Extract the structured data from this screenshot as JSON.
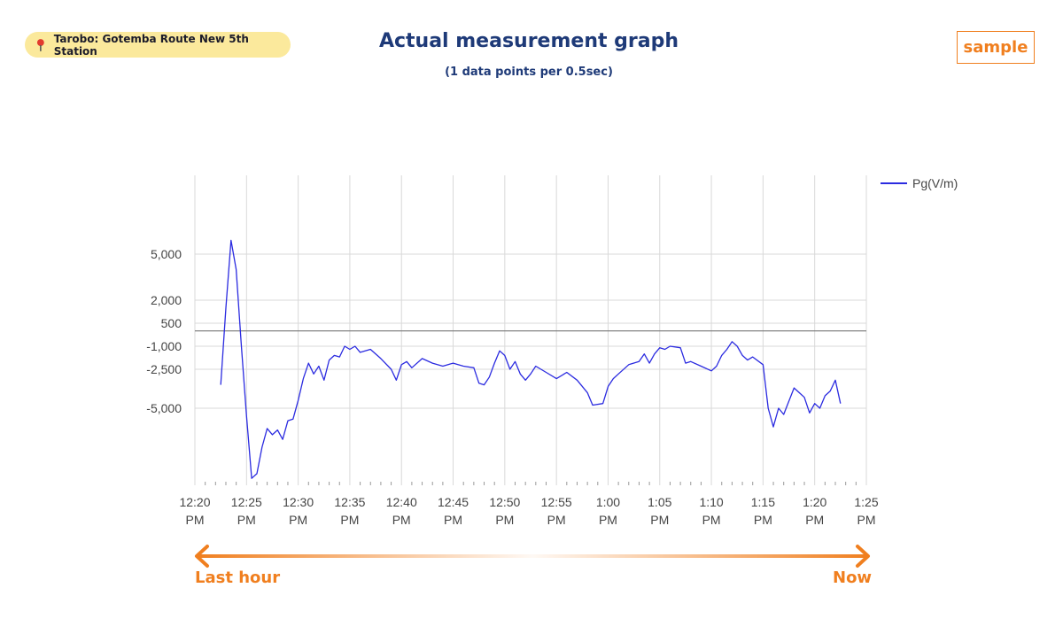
{
  "header": {
    "location": "Tarobo: Gotemba Route New 5th Station",
    "title": "Actual measurement graph",
    "subtitle": "(1 data points per 0.5sec)",
    "badge": "sample"
  },
  "range": {
    "start_label": "Last hour",
    "end_label": "Now"
  },
  "colors": {
    "accent": "#f07f1f",
    "title": "#1e3a78",
    "series": "#2b2be0",
    "location_bg": "#fbe99c"
  },
  "chart_data": {
    "type": "line",
    "title": "",
    "xlabel": "",
    "ylabel": "",
    "x_unit": "time (PM)",
    "xlim": [
      "12:20",
      "1:25"
    ],
    "x_ticks": [
      {
        "line1": "12:20",
        "line2": "PM"
      },
      {
        "line1": "12:25",
        "line2": "PM"
      },
      {
        "line1": "12:30",
        "line2": "PM"
      },
      {
        "line1": "12:35",
        "line2": "PM"
      },
      {
        "line1": "12:40",
        "line2": "PM"
      },
      {
        "line1": "12:45",
        "line2": "PM"
      },
      {
        "line1": "12:50",
        "line2": "PM"
      },
      {
        "line1": "12:55",
        "line2": "PM"
      },
      {
        "line1": "1:00",
        "line2": "PM"
      },
      {
        "line1": "1:05",
        "line2": "PM"
      },
      {
        "line1": "1:10",
        "line2": "PM"
      },
      {
        "line1": "1:15",
        "line2": "PM"
      },
      {
        "line1": "1:20",
        "line2": "PM"
      },
      {
        "line1": "1:25",
        "line2": "PM"
      }
    ],
    "y_ticks": [
      {
        "label": "5,000",
        "value": 5000
      },
      {
        "label": "2,000",
        "value": 2000
      },
      {
        "label": "500",
        "value": 500
      },
      {
        "label": "-1,000",
        "value": -1000
      },
      {
        "label": "-2,500",
        "value": -2500
      },
      {
        "label": "-5,000",
        "value": -5000
      }
    ],
    "y_scale": "nonlinear (ticks unevenly spaced)",
    "reference_line": 0,
    "grid": true,
    "legend": "top-right",
    "series": [
      {
        "name": "Pg(V/m)",
        "points": [
          [
            "12:22:30",
            -3500
          ],
          [
            "12:23:00",
            1500
          ],
          [
            "12:23:30",
            5900
          ],
          [
            "12:24:00",
            4000
          ],
          [
            "12:24:30",
            -1000
          ],
          [
            "12:25:00",
            -5500
          ],
          [
            "12:25:30",
            -9500
          ],
          [
            "12:26:00",
            -9200
          ],
          [
            "12:26:30",
            -7500
          ],
          [
            "12:27:00",
            -6300
          ],
          [
            "12:27:30",
            -6700
          ],
          [
            "12:28:00",
            -6400
          ],
          [
            "12:28:30",
            -7000
          ],
          [
            "12:29:00",
            -5800
          ],
          [
            "12:29:30",
            -5700
          ],
          [
            "12:30:00",
            -4500
          ],
          [
            "12:30:30",
            -3100
          ],
          [
            "12:31:00",
            -2100
          ],
          [
            "12:31:30",
            -2800
          ],
          [
            "12:32:00",
            -2300
          ],
          [
            "12:32:30",
            -3200
          ],
          [
            "12:33:00",
            -1900
          ],
          [
            "12:33:30",
            -1600
          ],
          [
            "12:34:00",
            -1700
          ],
          [
            "12:34:30",
            -1000
          ],
          [
            "12:35:00",
            -1200
          ],
          [
            "12:35:30",
            -1000
          ],
          [
            "12:36:00",
            -1400
          ],
          [
            "12:37:00",
            -1200
          ],
          [
            "12:38:00",
            -1800
          ],
          [
            "12:39:00",
            -2500
          ],
          [
            "12:39:30",
            -3200
          ],
          [
            "12:40:00",
            -2200
          ],
          [
            "12:40:30",
            -2000
          ],
          [
            "12:41:00",
            -2400
          ],
          [
            "12:42:00",
            -1800
          ],
          [
            "12:43:00",
            -2100
          ],
          [
            "12:44:00",
            -2300
          ],
          [
            "12:45:00",
            -2100
          ],
          [
            "12:46:00",
            -2300
          ],
          [
            "12:47:00",
            -2400
          ],
          [
            "12:47:30",
            -3400
          ],
          [
            "12:48:00",
            -3500
          ],
          [
            "12:48:30",
            -3000
          ],
          [
            "12:49:00",
            -2100
          ],
          [
            "12:49:30",
            -1300
          ],
          [
            "12:50:00",
            -1600
          ],
          [
            "12:50:30",
            -2500
          ],
          [
            "12:51:00",
            -2000
          ],
          [
            "12:51:30",
            -2800
          ],
          [
            "12:52:00",
            -3200
          ],
          [
            "12:52:30",
            -2800
          ],
          [
            "12:53:00",
            -2300
          ],
          [
            "12:54:00",
            -2700
          ],
          [
            "12:55:00",
            -3100
          ],
          [
            "12:56:00",
            -2700
          ],
          [
            "12:57:00",
            -3200
          ],
          [
            "12:58:00",
            -4000
          ],
          [
            "12:58:30",
            -4800
          ],
          [
            "12:59:30",
            -4700
          ],
          [
            "13:00:00",
            -3600
          ],
          [
            "13:00:30",
            -3100
          ],
          [
            "13:01:00",
            -2800
          ],
          [
            "13:02:00",
            -2200
          ],
          [
            "13:03:00",
            -2000
          ],
          [
            "13:03:30",
            -1500
          ],
          [
            "13:04:00",
            -2100
          ],
          [
            "13:04:30",
            -1500
          ],
          [
            "13:05:00",
            -1100
          ],
          [
            "13:05:30",
            -1200
          ],
          [
            "13:06:00",
            -1000
          ],
          [
            "13:07:00",
            -1100
          ],
          [
            "13:07:30",
            -2100
          ],
          [
            "13:08:00",
            -2000
          ],
          [
            "13:09:00",
            -2300
          ],
          [
            "13:10:00",
            -2600
          ],
          [
            "13:10:30",
            -2300
          ],
          [
            "13:11:00",
            -1600
          ],
          [
            "13:11:30",
            -1200
          ],
          [
            "13:12:00",
            -700
          ],
          [
            "13:12:30",
            -1000
          ],
          [
            "13:13:00",
            -1600
          ],
          [
            "13:13:30",
            -1900
          ],
          [
            "13:14:00",
            -1700
          ],
          [
            "13:15:00",
            -2200
          ],
          [
            "13:15:30",
            -5000
          ],
          [
            "13:16:00",
            -6200
          ],
          [
            "13:16:30",
            -5000
          ],
          [
            "13:17:00",
            -5400
          ],
          [
            "13:18:00",
            -3700
          ],
          [
            "13:18:30",
            -4000
          ],
          [
            "13:19:00",
            -4300
          ],
          [
            "13:19:30",
            -5300
          ],
          [
            "13:20:00",
            -4700
          ],
          [
            "13:20:30",
            -5000
          ],
          [
            "13:21:00",
            -4200
          ],
          [
            "13:21:30",
            -3900
          ],
          [
            "13:22:00",
            -3200
          ],
          [
            "13:22:30",
            -4700
          ]
        ]
      }
    ]
  }
}
